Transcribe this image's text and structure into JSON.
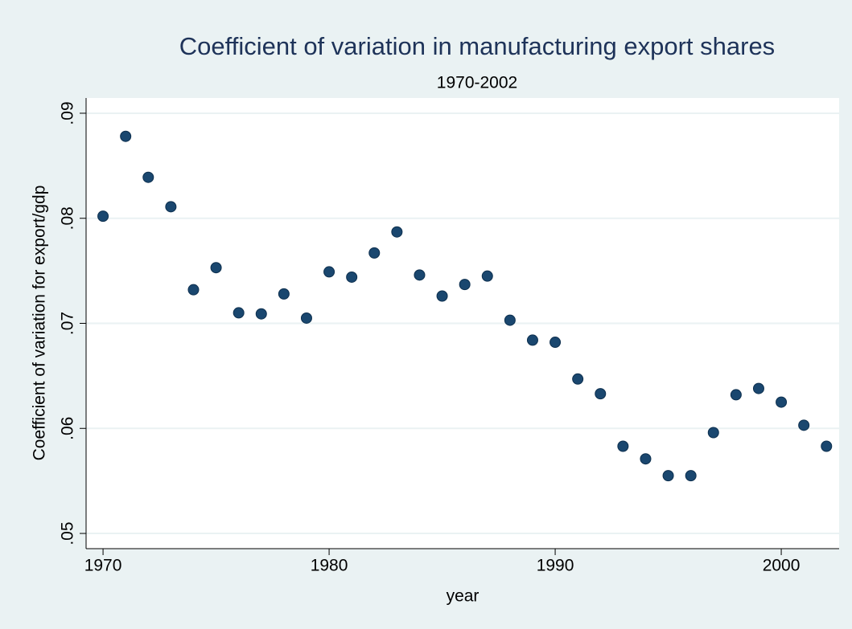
{
  "chart_data": {
    "type": "scatter",
    "title": "Coefficient of variation in manufacturing export shares",
    "subtitle": "1970-2002",
    "x_label": "year",
    "y_label": "Coefficient of variation for export/gdp",
    "color": "#1a476f",
    "grid": true,
    "xlim": [
      1969.25,
      2002.56
    ],
    "xticks": [
      1970,
      1980,
      1990,
      2000
    ],
    "ylim": [
      0.04855,
      0.09145
    ],
    "yticks": [
      {
        "value": 0.05,
        "label": ".05"
      },
      {
        "value": 0.06,
        "label": ".06"
      },
      {
        "value": 0.07,
        "label": ".07"
      },
      {
        "value": 0.08,
        "label": ".08"
      },
      {
        "value": 0.09,
        "label": ".09"
      }
    ],
    "x": [
      1970,
      1971,
      1972,
      1973,
      1974,
      1975,
      1976,
      1977,
      1978,
      1979,
      1980,
      1981,
      1982,
      1983,
      1984,
      1985,
      1986,
      1987,
      1988,
      1989,
      1990,
      1991,
      1992,
      1993,
      1994,
      1995,
      1996,
      1997,
      1998,
      1999,
      2000,
      2001,
      2002
    ],
    "values": [
      0.0802,
      0.0878,
      0.0839,
      0.0811,
      0.0732,
      0.0753,
      0.071,
      0.0709,
      0.0728,
      0.0705,
      0.0749,
      0.0744,
      0.0767,
      0.0787,
      0.0746,
      0.0726,
      0.0737,
      0.0745,
      0.0703,
      0.0684,
      0.0682,
      0.0647,
      0.0633,
      0.0583,
      0.0571,
      0.0555,
      0.0555,
      0.0596,
      0.0632,
      0.0638,
      0.0625,
      0.0603,
      0.0583
    ]
  }
}
